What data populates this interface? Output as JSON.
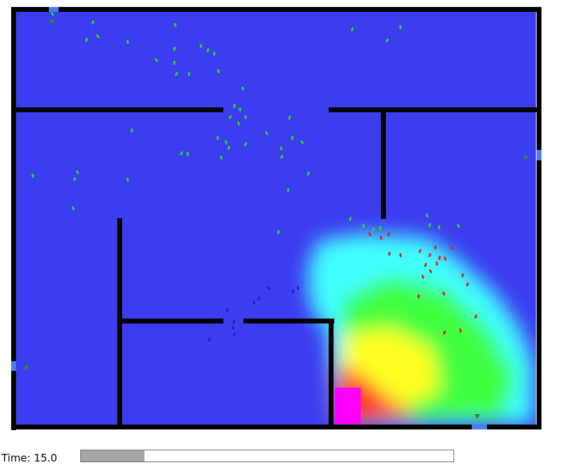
{
  "simulation": {
    "floor_color": "#3c3cf0",
    "wall_color": "#000000",
    "fire_source_color": "#ff00ff",
    "smoke_colors": [
      "#40ffff",
      "#40ff40",
      "#ffff20",
      "#ff3030"
    ],
    "agent_colors": {
      "safe": "#20e020",
      "affected": "#e02020",
      "trapped": "#2020c0"
    }
  },
  "status": {
    "time_label": "Time: 15.0",
    "progress": 0.17
  }
}
